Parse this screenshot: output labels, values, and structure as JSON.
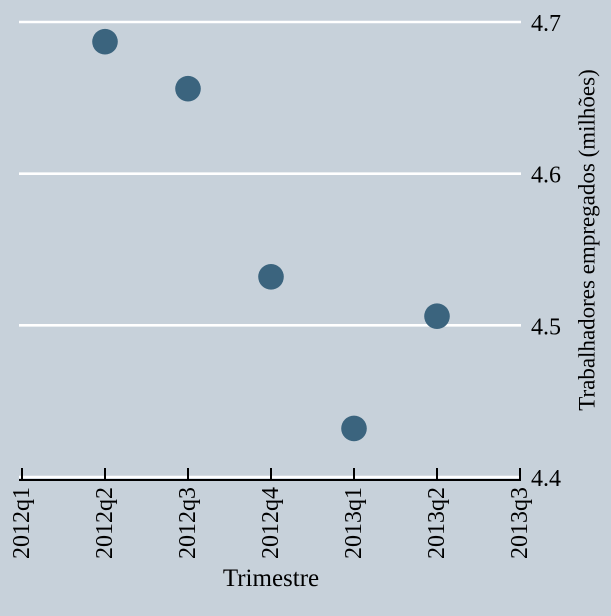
{
  "chart_data": {
    "type": "scatter",
    "title": "",
    "xlabel": "Trimestre",
    "ylabel": "Trabalhadores empregados (milhões)",
    "x_tick_labels": [
      "2012q1",
      "2012q2",
      "2012q3",
      "2012q4",
      "2013q1",
      "2013q2",
      "2013q3"
    ],
    "y_ticks": [
      4.4,
      4.5,
      4.6,
      4.7
    ],
    "y_tick_labels": [
      "4.4",
      "4.5",
      "4.6",
      "4.7"
    ],
    "ylim": [
      4.4,
      4.7
    ],
    "y_axis_side": "right",
    "grid": "horizontal",
    "x_tick_style": "inward",
    "x_label_rotation": -90,
    "points": [
      {
        "x": "2012q2",
        "y": 4.687
      },
      {
        "x": "2012q3",
        "y": 4.656
      },
      {
        "x": "2012q4",
        "y": 4.532
      },
      {
        "x": "2013q1",
        "y": 4.432
      },
      {
        "x": "2013q2",
        "y": 4.506
      }
    ],
    "colors": {
      "background": "#c7d1da",
      "marker": "#3b647e",
      "gridline": "#ffffff",
      "axis": "#000000",
      "text": "#000000"
    }
  }
}
